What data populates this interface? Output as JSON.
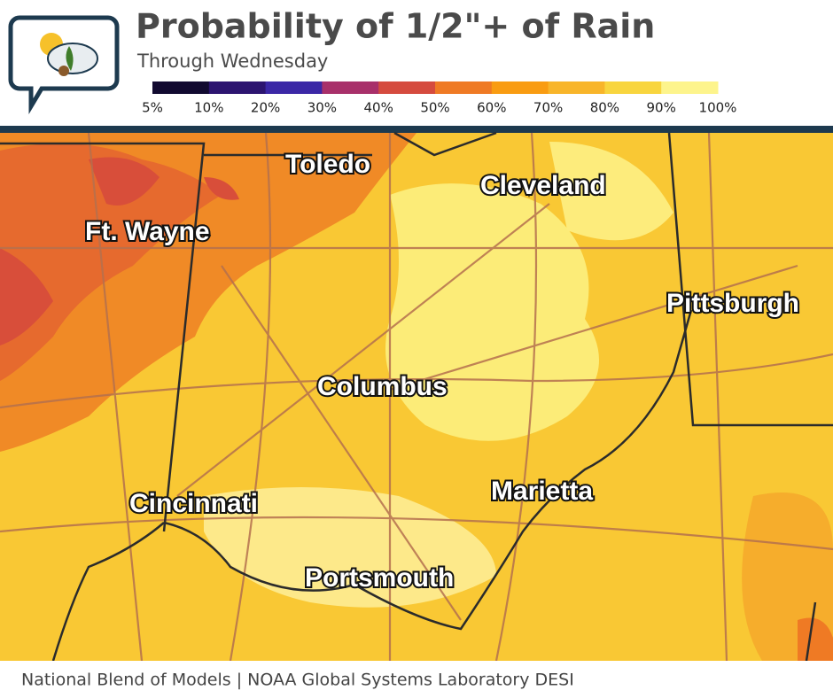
{
  "header": {
    "title": "Probability of 1/2\"+ of Rain",
    "subtitle": "Through Wednesday"
  },
  "legend": {
    "labels": [
      "5%",
      "10%",
      "20%",
      "30%",
      "40%",
      "50%",
      "60%",
      "70%",
      "80%",
      "90%",
      "100%"
    ],
    "colors": [
      "#120a30",
      "#2c1470",
      "#3b27a6",
      "#a8306a",
      "#d54b3e",
      "#ef7a24",
      "#f99c12",
      "#f8b52a",
      "#f8d53e",
      "#fdf48c"
    ]
  },
  "map": {
    "cities": [
      "Toledo",
      "Cleveland",
      "Ft. Wayne",
      "Pittsburgh",
      "Columbus",
      "Marietta",
      "Cincinnati",
      "Portsmouth"
    ]
  },
  "footer": "National Blend of Models | NOAA Global Systems Laboratory DESI"
}
